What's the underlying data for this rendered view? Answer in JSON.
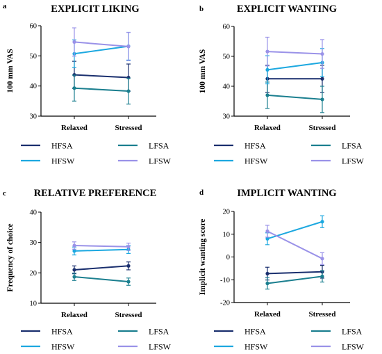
{
  "chart_data": [
    {
      "panel": "a",
      "type": "line",
      "title": "EXPLICIT LIKING",
      "ylabel": "100 mm VAS",
      "categories": [
        "Relaxed",
        "Stressed"
      ],
      "ylim": [
        30,
        60
      ],
      "yticks": [
        30,
        40,
        50,
        60
      ],
      "series": [
        {
          "name": "HFSA",
          "color": "#1a2f6e",
          "values": [
            43.7,
            42.8
          ],
          "err": [
            4.5,
            4.5
          ]
        },
        {
          "name": "LFSA",
          "color": "#1b7f8f",
          "values": [
            39.3,
            38.3
          ],
          "err": [
            4.3,
            4.3
          ]
        },
        {
          "name": "HFSW",
          "color": "#1ca8e0",
          "values": [
            50.7,
            53.2
          ],
          "err": [
            4.6,
            4.6
          ]
        },
        {
          "name": "LFSW",
          "color": "#9a92e8",
          "values": [
            54.6,
            53.1
          ],
          "err": [
            4.7,
            4.7
          ]
        }
      ]
    },
    {
      "panel": "b",
      "type": "line",
      "title": "EXPLICIT WANTING",
      "ylabel": "100 mm VAS",
      "categories": [
        "Relaxed",
        "Stressed"
      ],
      "ylim": [
        30,
        60
      ],
      "yticks": [
        30,
        40,
        50,
        60
      ],
      "series": [
        {
          "name": "HFSA",
          "color": "#1a2f6e",
          "values": [
            42.5,
            42.5
          ],
          "err": [
            4.5,
            4.5
          ]
        },
        {
          "name": "LFSA",
          "color": "#1b7f8f",
          "values": [
            37.0,
            35.6
          ],
          "err": [
            4.4,
            4.4
          ]
        },
        {
          "name": "HFSW",
          "color": "#1ca8e0",
          "values": [
            45.5,
            47.9
          ],
          "err": [
            4.7,
            4.7
          ]
        },
        {
          "name": "LFSW",
          "color": "#9a92e8",
          "values": [
            51.6,
            50.8
          ],
          "err": [
            4.8,
            4.8
          ]
        }
      ]
    },
    {
      "panel": "c",
      "type": "line",
      "title": "RELATIVE PREFERENCE",
      "ylabel": "Frequency of choice",
      "categories": [
        "Relaxed",
        "Stressed"
      ],
      "ylim": [
        10,
        40
      ],
      "yticks": [
        10,
        20,
        30,
        40
      ],
      "series": [
        {
          "name": "HFSA",
          "color": "#1a2f6e",
          "values": [
            21.0,
            22.3
          ],
          "err": [
            1.3,
            1.3
          ]
        },
        {
          "name": "LFSA",
          "color": "#1b7f8f",
          "values": [
            18.7,
            17.1
          ],
          "err": [
            1.2,
            1.2
          ]
        },
        {
          "name": "HFSW",
          "color": "#1ca8e0",
          "values": [
            27.2,
            27.7
          ],
          "err": [
            1.3,
            1.3
          ]
        },
        {
          "name": "LFSW",
          "color": "#9a92e8",
          "values": [
            29.0,
            28.6
          ],
          "err": [
            1.2,
            1.2
          ]
        }
      ]
    },
    {
      "panel": "d",
      "type": "line",
      "title": "IMPLICIT WANTING",
      "ylabel": "Implicit wanting score",
      "categories": [
        "Relaxed",
        "Stressed"
      ],
      "ylim": [
        -20,
        20
      ],
      "yticks": [
        -20,
        -10,
        0,
        10,
        20
      ],
      "series": [
        {
          "name": "HFSA",
          "color": "#1a2f6e",
          "values": [
            -7.3,
            -6.5
          ],
          "err": [
            2.8,
            2.8
          ]
        },
        {
          "name": "LFSA",
          "color": "#1b7f8f",
          "values": [
            -11.6,
            -8.5
          ],
          "err": [
            2.5,
            2.5
          ]
        },
        {
          "name": "HFSW",
          "color": "#1ca8e0",
          "values": [
            8.0,
            15.5
          ],
          "err": [
            2.6,
            2.6
          ]
        },
        {
          "name": "LFSW",
          "color": "#9a92e8",
          "values": [
            11.3,
            -0.7
          ],
          "err": [
            2.6,
            2.6
          ]
        }
      ]
    }
  ],
  "legend_order": [
    "HFSA",
    "LFSA",
    "HFSW",
    "LFSW"
  ]
}
